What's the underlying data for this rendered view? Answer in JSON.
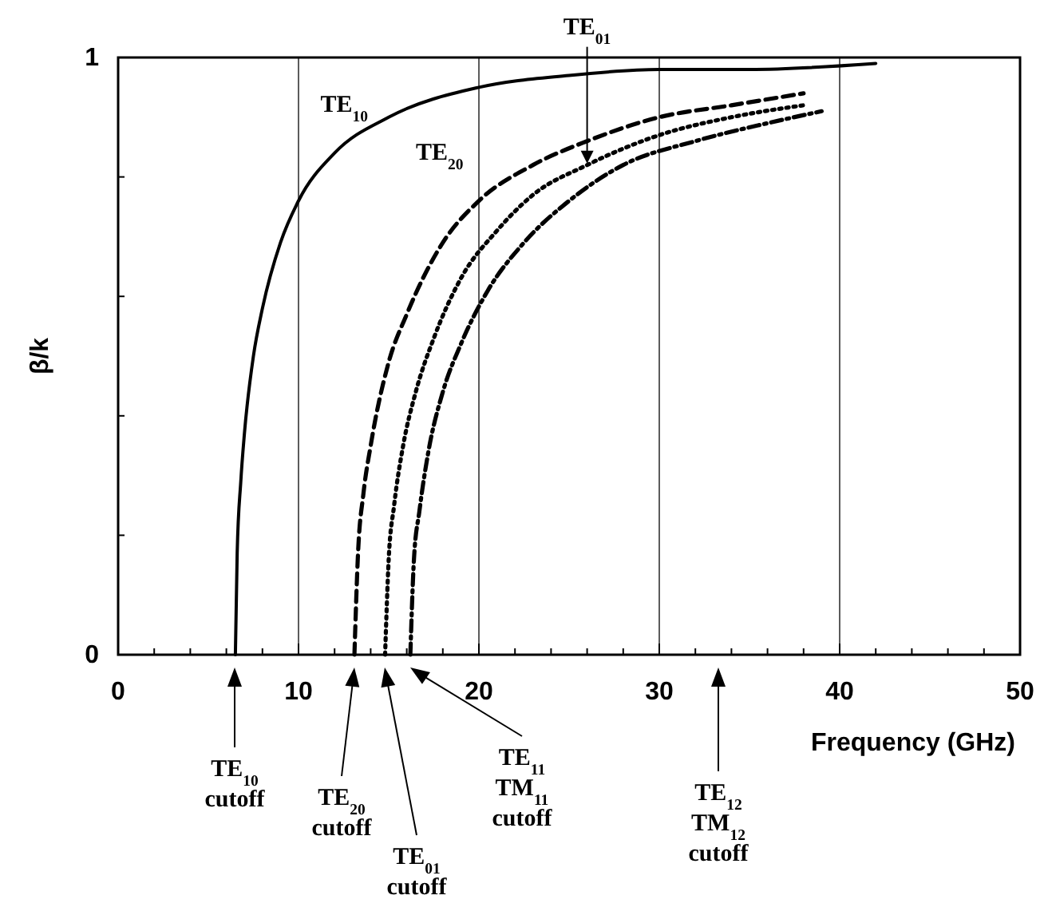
{
  "chart_data": {
    "type": "line",
    "xlabel": "Frequency (GHz)",
    "ylabel": "β/k",
    "xlim": [
      0,
      50
    ],
    "ylim": [
      0,
      1
    ],
    "xticks": [
      0,
      {
        "value": 2,
        "label": null
      },
      {
        "value": 4,
        "label": null
      },
      {
        "value": 6,
        "label": null
      },
      {
        "value": 8,
        "label": null
      },
      10,
      {
        "value": 12,
        "label": null
      },
      {
        "value": 14,
        "label": null
      },
      {
        "value": 16,
        "label": null
      },
      {
        "value": 18,
        "label": null
      },
      20,
      {
        "value": 22,
        "label": null
      },
      {
        "value": 24,
        "label": null
      },
      {
        "value": 26,
        "label": null
      },
      {
        "value": 28,
        "label": null
      },
      30,
      {
        "value": 32,
        "label": null
      },
      {
        "value": 34,
        "label": null
      },
      {
        "value": 36,
        "label": null
      },
      {
        "value": 38,
        "label": null
      },
      40,
      {
        "value": 42,
        "label": null
      },
      {
        "value": 44,
        "label": null
      },
      {
        "value": 46,
        "label": null
      },
      {
        "value": 48,
        "label": null
      },
      50
    ],
    "yticks": [
      0,
      {
        "value": 0.2,
        "label": null
      },
      {
        "value": 0.4,
        "label": null
      },
      {
        "value": 0.6,
        "label": null
      },
      {
        "value": 0.8,
        "label": null
      },
      1
    ],
    "grid": "x",
    "marker": "none",
    "series": [
      {
        "name": "TE$_{10}$",
        "color": "#000000",
        "line_style": "solid",
        "x": [
          6.5,
          6.6,
          6.8,
          7,
          7.5,
          8,
          9,
          10,
          12,
          15,
          20,
          25,
          30,
          35,
          42
        ],
        "values": [
          0,
          0.17,
          0.29,
          0.37,
          0.5,
          0.58,
          0.69,
          0.76,
          0.84,
          0.9,
          0.95,
          0.97,
          0.98,
          0.98,
          0.99
        ]
      },
      {
        "name": "TE$_{20}$",
        "color": "#000000",
        "line_style": "dashed",
        "x": [
          13.1,
          13.3,
          13.6,
          14,
          15,
          16,
          18,
          20,
          23,
          26,
          30,
          34,
          38
        ],
        "values": [
          0,
          0.17,
          0.27,
          0.35,
          0.49,
          0.57,
          0.69,
          0.76,
          0.82,
          0.86,
          0.9,
          0.92,
          0.94
        ]
      },
      {
        "name": "TE$_{01}$",
        "color": "#000000",
        "line_style": "dotted",
        "x": [
          14.8,
          15,
          15.3,
          15.8,
          16.5,
          17.5,
          19,
          21,
          23,
          26,
          30,
          34,
          38
        ],
        "values": [
          0,
          0.16,
          0.25,
          0.35,
          0.44,
          0.53,
          0.63,
          0.71,
          0.77,
          0.82,
          0.87,
          0.9,
          0.92
        ]
      },
      {
        "color": "#000000",
        "line_style": "dashdot",
        "x": [
          16.2,
          16.4,
          16.7,
          17.2,
          18,
          19,
          20.5,
          22.5,
          25,
          28,
          32,
          36,
          39
        ],
        "values": [
          0,
          0.16,
          0.24,
          0.34,
          0.44,
          0.52,
          0.61,
          0.69,
          0.76,
          0.82,
          0.86,
          0.89,
          0.91
        ]
      }
    ],
    "annotations": [
      "TE$_{10}$\ncutoff",
      "TE$_{20}$\ncutoff",
      "TE$_{01}$\ncutoff",
      "TE$_{11}$\nTM$_{11}$\ncutoff",
      "TE$_{12}$\nTM$_{12}$\ncutoff"
    ]
  }
}
